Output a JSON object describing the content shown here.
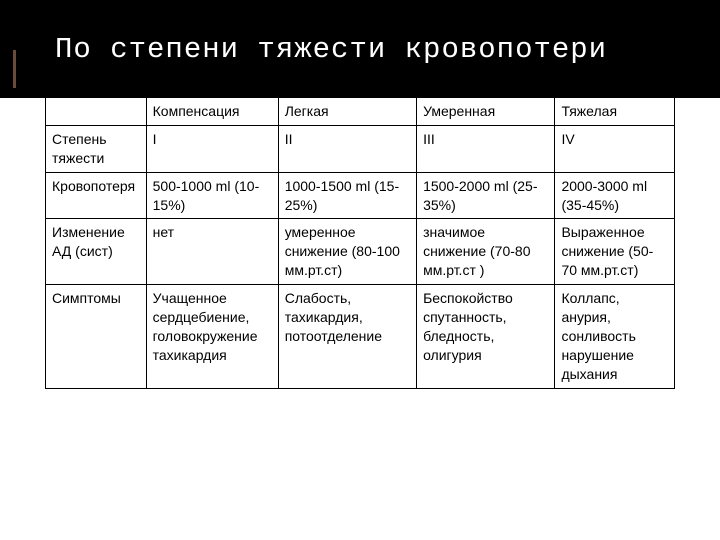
{
  "title": "По степени тяжести кровопотери",
  "table": {
    "columns": [
      "",
      "Компенсация",
      "Легкая",
      "Умеренная",
      "Тяжелая"
    ],
    "rows": [
      [
        "Степень тяжести",
        "I",
        "II",
        "III",
        "IV"
      ],
      [
        "Кровопотеря",
        "500-1000 ml (10-15%)",
        "1000-1500 ml (15-25%)",
        "1500-2000 ml (25-35%)",
        "2000-3000 ml (35-45%)"
      ],
      [
        "Изменение АД (сист)",
        "нет",
        "умеренное снижение (80-100 мм.рт.ст)",
        "значимое снижение (70-80 мм.рт.ст )",
        "Выраженное снижение (50-70 мм.рт.ст)"
      ],
      [
        "Симптомы",
        "Учащенное сердцебиение, головокружение тахикардия",
        "Слабость, тахикардия, потоотделение",
        "Беспокойство спутанность, бледность, олигурия",
        "Коллапс, анурия, сонливость нарушение дыхания"
      ]
    ],
    "border_color": "#000000",
    "header_bg": "#000000",
    "header_fg": "#ffffff",
    "cell_bg": "#ffffff",
    "cell_fg": "#000000",
    "font_size_title": 29,
    "font_size_cell": 14
  }
}
